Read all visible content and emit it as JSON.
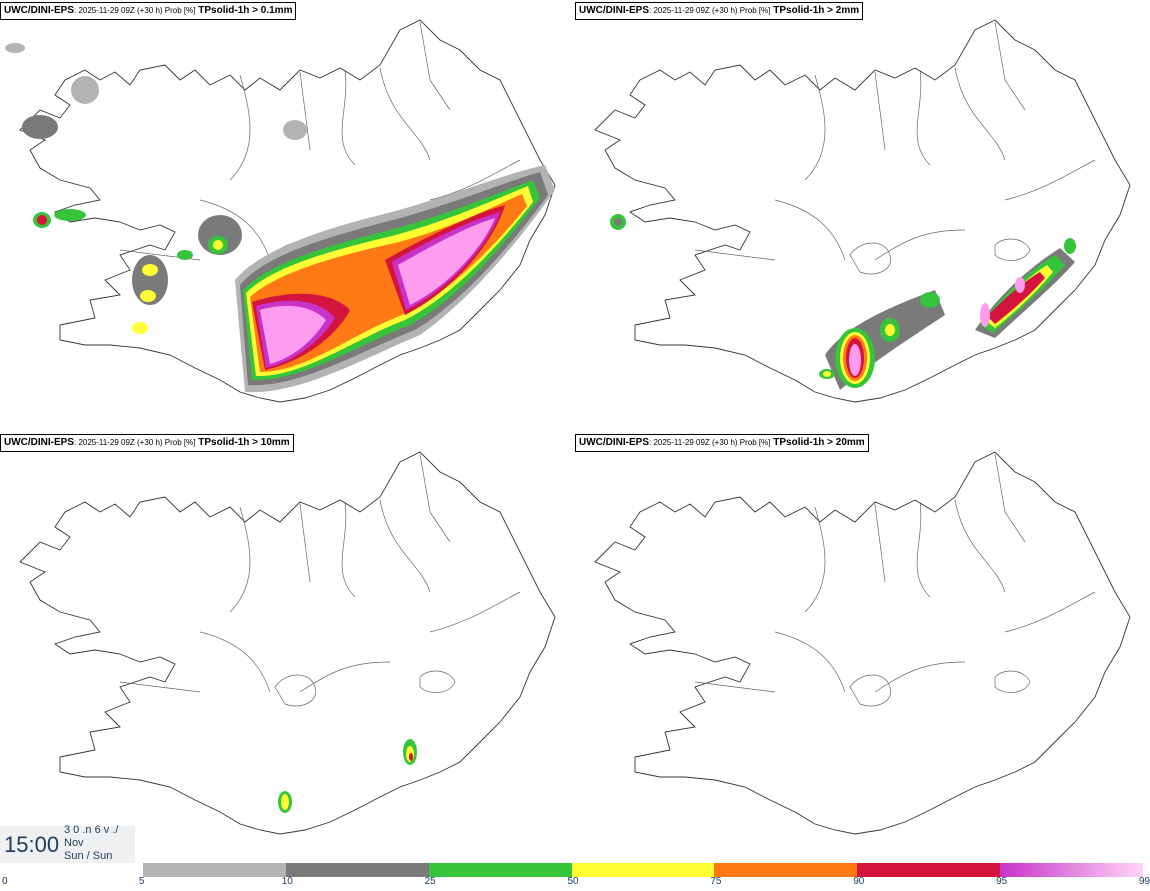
{
  "panels": [
    {
      "model": "UWC/DINI-EPS",
      "meta": ": 2025-11-29 09Z (+30 h) Prob [%]",
      "param": "TPsolid-1h > 0.1mm"
    },
    {
      "model": "UWC/DINI-EPS",
      "meta": ": 2025-11-29 09Z (+30 h) Prob [%]",
      "param": "TPsolid-1h > 2mm"
    },
    {
      "model": "UWC/DINI-EPS",
      "meta": ": 2025-11-29 09Z (+30 h) Prob [%]",
      "param": "TPsolid-1h > 10mm"
    },
    {
      "model": "UWC/DINI-EPS",
      "meta": ": 2025-11-29 09Z (+30 h) Prob [%]",
      "param": "TPsolid-1h > 20mm"
    }
  ],
  "timebox": {
    "time": "15:00",
    "line1": "3 0 .n 6 v ./",
    "line2": "Nov",
    "line3": "Sun / Sun"
  },
  "legend": {
    "ticks": [
      "0",
      "5",
      "10",
      "25",
      "50",
      "75",
      "90",
      "95",
      "99"
    ],
    "colors": [
      "#ffffff",
      "#b3b3b3",
      "#7a7a7a",
      "#35c43a",
      "#ffff33",
      "#ff7a14",
      "#d4143c",
      "#c832c8",
      "#ff9cf0"
    ]
  }
}
